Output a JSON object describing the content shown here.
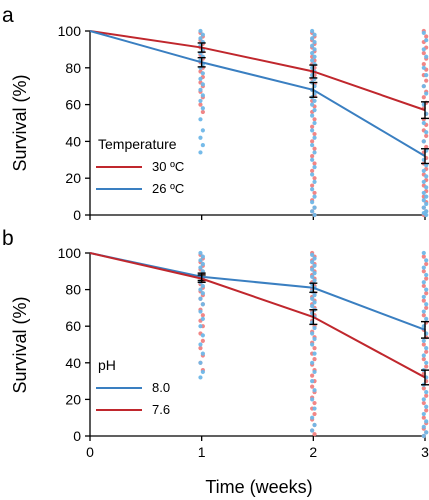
{
  "chart_data": [
    {
      "panel_label": "a",
      "type": "line",
      "x": [
        0,
        1,
        2,
        3
      ],
      "xlabel": "",
      "ylabel": "Survival (%)",
      "xlim": [
        0,
        3
      ],
      "ylim": [
        0,
        100
      ],
      "y_ticks": [
        0,
        20,
        40,
        60,
        80,
        100
      ],
      "legend_title": "Temperature",
      "legend_position": "lower-left",
      "series": [
        {
          "name": "30 ºC",
          "color": "#c0272d",
          "values": [
            100,
            91,
            78,
            57
          ],
          "error": [
            0,
            2.5,
            3.5,
            4.5
          ]
        },
        {
          "name": "26 ºC",
          "color": "#3a7fc1",
          "values": [
            100,
            83,
            68,
            32
          ],
          "error": [
            0,
            2.5,
            4.0,
            4.0
          ]
        }
      ],
      "scatter_points": [
        {
          "color": "#f08080",
          "x": 1,
          "y": [
            99,
            97,
            95,
            93,
            91,
            89,
            87,
            85,
            83,
            80,
            78,
            75,
            72,
            70,
            67,
            64,
            60,
            56
          ]
        },
        {
          "color": "#6fb7e8",
          "x": 1,
          "y": [
            100,
            98,
            96,
            94,
            92,
            90,
            88,
            86,
            84,
            82,
            80,
            77,
            74,
            71,
            68,
            65,
            62,
            58,
            52,
            46,
            42,
            38,
            34
          ]
        },
        {
          "color": "#f08080",
          "x": 2,
          "y": [
            99,
            97,
            95,
            93,
            91,
            89,
            86,
            84,
            82,
            80,
            78,
            76,
            74,
            71,
            68,
            65,
            62,
            59,
            56,
            52,
            48,
            44,
            40,
            36,
            32,
            28,
            24,
            20,
            16,
            12,
            8,
            4,
            2,
            0
          ]
        },
        {
          "color": "#6fb7e8",
          "x": 2,
          "y": [
            100,
            98,
            96,
            94,
            92,
            90,
            88,
            86,
            84,
            82,
            80,
            78,
            76,
            74,
            72,
            70,
            68,
            66,
            64,
            62,
            60,
            57,
            54,
            50,
            46,
            42,
            38,
            34,
            30,
            26,
            22,
            18,
            14,
            10,
            7,
            4,
            2,
            0
          ]
        },
        {
          "color": "#f08080",
          "x": 3,
          "y": [
            100,
            97,
            94,
            91,
            88,
            85,
            82,
            79,
            76,
            73,
            70,
            67,
            64,
            61,
            58,
            55,
            52,
            49,
            46,
            43,
            40,
            37,
            34,
            31,
            28,
            25,
            22,
            19,
            16,
            13,
            10,
            7,
            4,
            2,
            0
          ]
        },
        {
          "color": "#6fb7e8",
          "x": 3,
          "y": [
            99,
            95,
            90,
            86,
            80,
            76,
            70,
            66,
            60,
            55,
            50,
            45,
            40,
            35,
            30,
            27,
            24,
            21,
            18,
            15,
            12,
            10,
            8,
            6,
            4,
            2,
            1,
            0
          ]
        }
      ]
    },
    {
      "panel_label": "b",
      "type": "line",
      "x": [
        0,
        1,
        2,
        3
      ],
      "xlabel": "Time (weeks)",
      "ylabel": "Survival (%)",
      "xlim": [
        0,
        3
      ],
      "ylim": [
        0,
        100
      ],
      "x_ticks": [
        0,
        1,
        2,
        3
      ],
      "y_ticks": [
        0,
        20,
        40,
        60,
        80,
        100
      ],
      "legend_title": "pH",
      "legend_position": "lower-left",
      "series": [
        {
          "name": "8.0",
          "color": "#3a7fc1",
          "values": [
            100,
            87,
            81,
            58
          ],
          "error": [
            0,
            2.0,
            2.5,
            4.5
          ]
        },
        {
          "name": "7.6",
          "color": "#c0272d",
          "values": [
            100,
            86,
            65,
            32
          ],
          "error": [
            0,
            2.0,
            4.0,
            4.0
          ]
        }
      ],
      "scatter_points": [
        {
          "color": "#f08080",
          "x": 1,
          "y": [
            99,
            97,
            95,
            93,
            91,
            89,
            87,
            85,
            83,
            81,
            79,
            77,
            75,
            72,
            69,
            66,
            63,
            60,
            56,
            52,
            48,
            44,
            40,
            36
          ]
        },
        {
          "color": "#6fb7e8",
          "x": 1,
          "y": [
            100,
            98,
            96,
            94,
            92,
            90,
            88,
            86,
            84,
            82,
            80,
            78,
            75,
            72,
            68,
            64,
            60,
            55,
            50,
            45,
            40,
            35,
            32
          ]
        },
        {
          "color": "#f08080",
          "x": 2,
          "y": [
            100,
            98,
            96,
            94,
            92,
            90,
            88,
            86,
            84,
            82,
            80,
            78,
            76,
            74,
            72,
            70,
            68,
            66,
            63,
            60,
            57,
            54,
            51,
            48,
            45,
            42,
            39,
            36,
            33,
            30,
            27,
            24,
            21,
            18,
            15,
            12,
            9,
            6,
            3,
            1
          ]
        },
        {
          "color": "#6fb7e8",
          "x": 2,
          "y": [
            99,
            97,
            95,
            93,
            91,
            89,
            87,
            85,
            83,
            81,
            79,
            77,
            75,
            73,
            71,
            69,
            67,
            65,
            62,
            59,
            56,
            53,
            50,
            45,
            40,
            35,
            30,
            25,
            20,
            15,
            10,
            6,
            3
          ]
        },
        {
          "color": "#f08080",
          "x": 3,
          "y": [
            98,
            94,
            90,
            86,
            82,
            78,
            74,
            70,
            66,
            62,
            58,
            54,
            50,
            46,
            42,
            38,
            34,
            30,
            26,
            22,
            18,
            14,
            10,
            7,
            4,
            2,
            0
          ]
        },
        {
          "color": "#6fb7e8",
          "x": 3,
          "y": [
            100,
            96,
            92,
            88,
            84,
            80,
            76,
            72,
            68,
            64,
            60,
            56,
            52,
            48,
            44,
            40,
            36,
            32,
            28,
            24,
            20,
            16,
            12,
            8,
            5,
            2,
            0
          ]
        }
      ]
    }
  ]
}
